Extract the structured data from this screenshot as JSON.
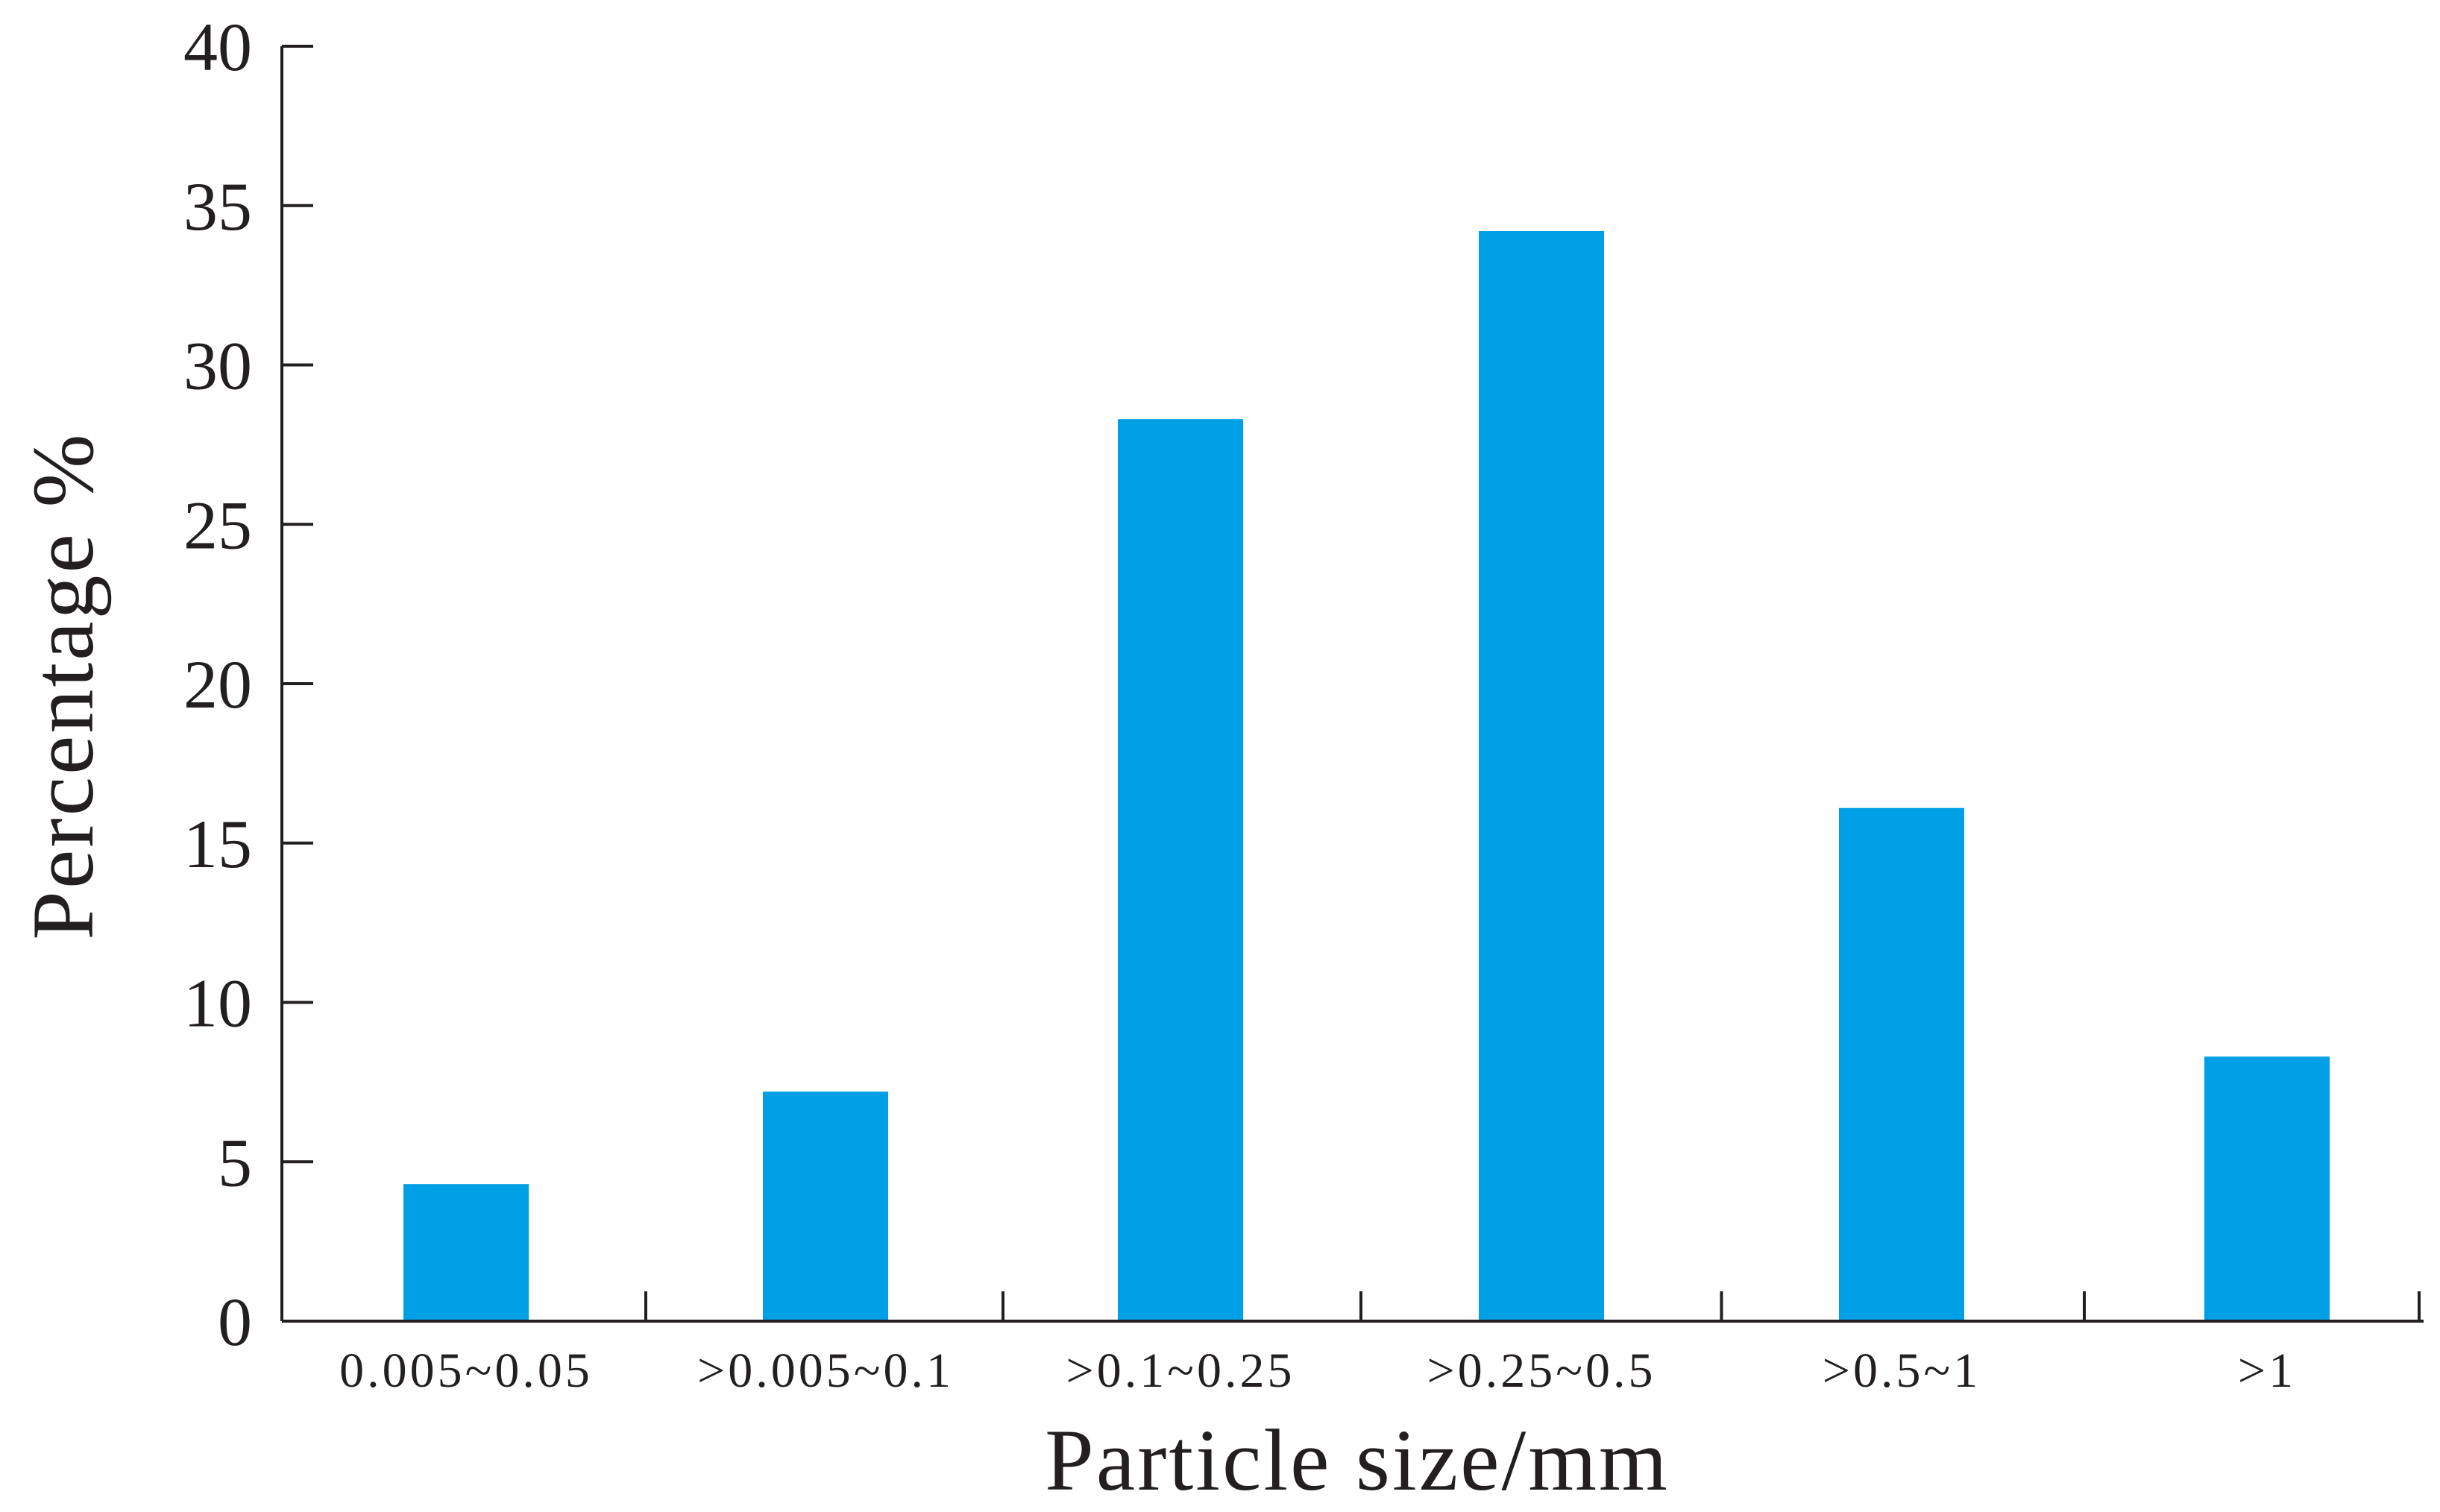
{
  "chart_data": {
    "type": "bar",
    "categories": [
      "0.005~0.05",
      ">0.005~0.1",
      ">0.1~0.25",
      ">0.25~0.5",
      ">0.5~1",
      ">1"
    ],
    "values": [
      4.3,
      7.2,
      28.3,
      34.2,
      16.1,
      8.3
    ],
    "xlabel": "Particle size/mm",
    "ylabel": "Percentage %",
    "ylim": [
      0,
      40
    ],
    "yticks": [
      "0",
      "5",
      "10",
      "15",
      "20",
      "25",
      "30",
      "35",
      "40"
    ],
    "bar_color": "#00a0e6",
    "grid": false,
    "legend": "none"
  }
}
